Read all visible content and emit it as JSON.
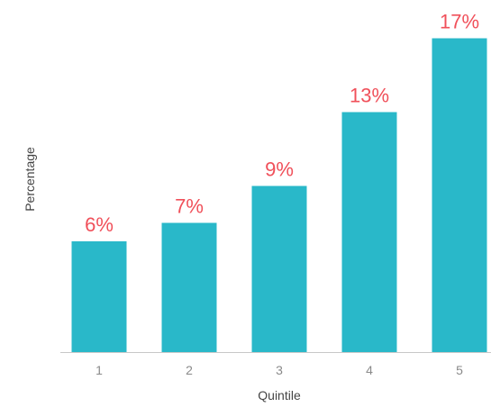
{
  "chart_data": {
    "type": "bar",
    "title": "",
    "xlabel": "Quintile",
    "ylabel": "Percentage",
    "categories": [
      "1",
      "2",
      "3",
      "4",
      "5"
    ],
    "values": [
      6,
      7,
      9,
      13,
      17
    ],
    "data_labels": [
      "6%",
      "7%",
      "9%",
      "13%",
      "17%"
    ],
    "ylim": [
      0,
      18
    ],
    "grid": false,
    "legend": "none",
    "colors": {
      "bar": "#29b8c9",
      "data_label": "#f0505a",
      "axis": "#c8c8c8",
      "tick_label": "#8a8a8a",
      "axis_title": "#444444"
    }
  }
}
